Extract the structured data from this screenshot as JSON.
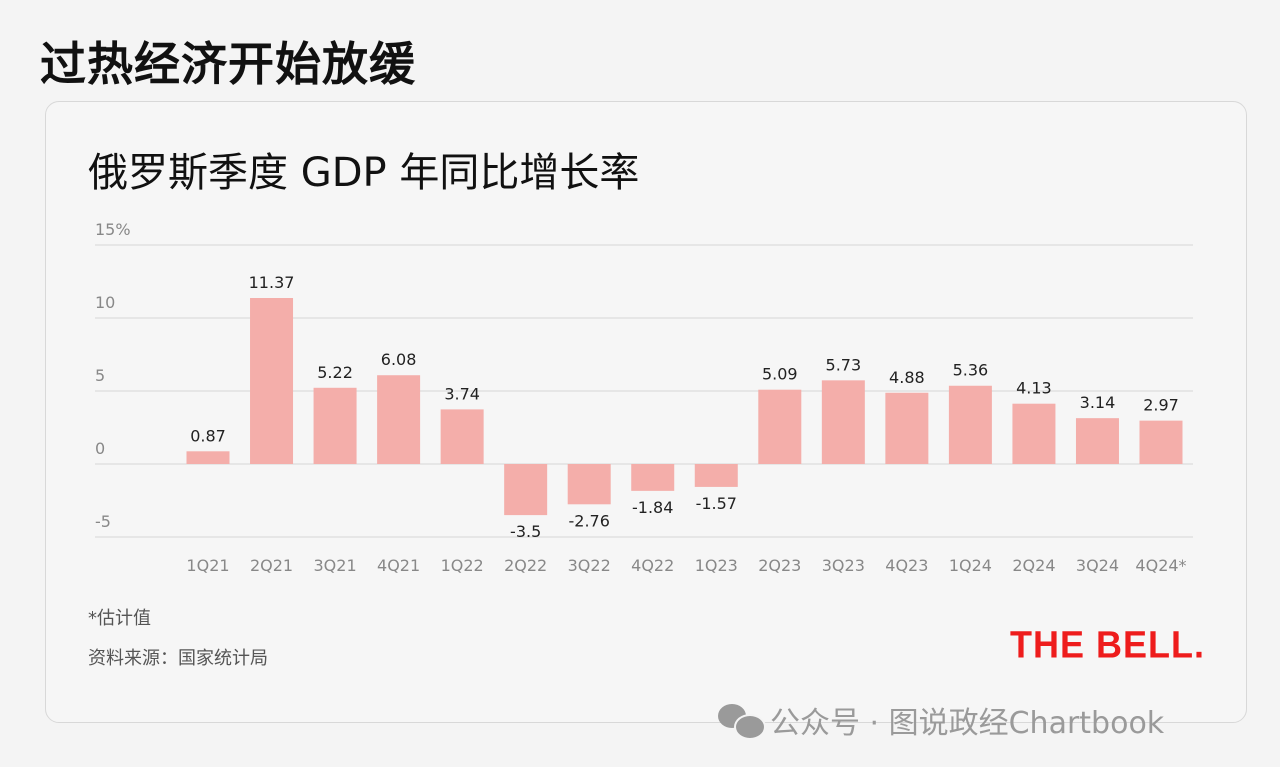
{
  "headline": "过热经济开始放缓",
  "chart_data": {
    "type": "bar",
    "title": "俄罗斯季度 GDP 年同比增长率",
    "categories": [
      "1Q21",
      "2Q21",
      "3Q21",
      "4Q21",
      "1Q22",
      "2Q22",
      "3Q22",
      "4Q22",
      "1Q23",
      "2Q23",
      "3Q23",
      "4Q23",
      "1Q24",
      "2Q24",
      "3Q24",
      "4Q24*"
    ],
    "values": [
      0.87,
      11.37,
      5.22,
      6.08,
      3.74,
      -3.5,
      -2.76,
      -1.84,
      -1.57,
      5.09,
      5.73,
      4.88,
      5.36,
      4.13,
      3.14,
      2.97
    ],
    "data_labels": [
      "0.87",
      "11.37",
      "5.22",
      "6.08",
      "3.74",
      "-3.5",
      "-2.76",
      "-1.84",
      "-1.57",
      "5.09",
      "5.73",
      "4.88",
      "5.36",
      "4.13",
      "3.14",
      "2.97"
    ],
    "yticks": [
      15,
      10,
      5,
      0,
      -5
    ],
    "ytick_labels": [
      "15%",
      "10",
      "5",
      "0",
      "-5"
    ],
    "ylim": [
      -5,
      15
    ],
    "grid": true,
    "bar_color": "#f4aeaa",
    "xlabel": "",
    "ylabel": ""
  },
  "footnote": "*估计值",
  "source": "资料来源：国家统计局",
  "logo_text": "THE BELL.",
  "logo_color": "#ee1c1c",
  "watermark": "公众号 · 图说政经Chartbook"
}
